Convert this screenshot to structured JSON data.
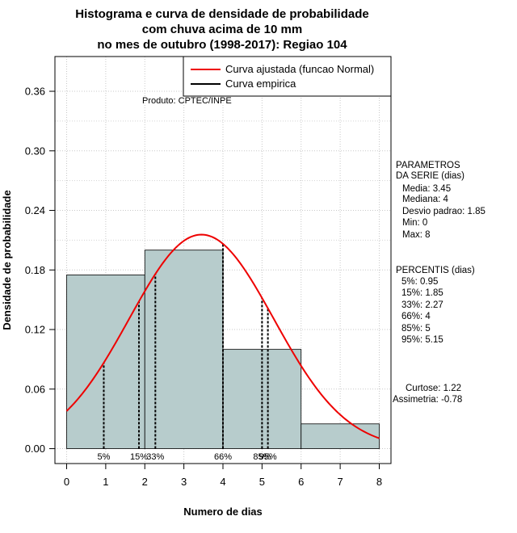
{
  "chart_data": {
    "type": "bar",
    "title_lines": [
      "Histograma e curva de densidade de probabilidade",
      "com chuva acima de 10 mm",
      "no mes de outubro (1998-2017): Regiao 104"
    ],
    "xlabel": "Numero de dias",
    "ylabel": "Densidade de probabilidade",
    "xlim": [
      -0.3,
      8.3
    ],
    "ylim": [
      -0.015,
      0.395
    ],
    "x_ticks": [
      "0",
      "1",
      "2",
      "3",
      "4",
      "5",
      "6",
      "7",
      "8"
    ],
    "y_ticks": [
      "0.00",
      "0.06",
      "0.12",
      "0.18",
      "0.24",
      "0.30",
      "0.36"
    ],
    "grid": true,
    "bins": [
      {
        "from": 0,
        "to": 2,
        "density": 0.175
      },
      {
        "from": 2,
        "to": 4,
        "density": 0.2
      },
      {
        "from": 4,
        "to": 6,
        "density": 0.1
      },
      {
        "from": 6,
        "to": 8,
        "density": 0.025
      }
    ],
    "fitted_curve": {
      "distribution": "normal",
      "mean": 3.45,
      "sd": 1.85,
      "color": "#ee0000"
    },
    "bar_color": "#b7cccc",
    "legend": {
      "position": "top-right",
      "items": [
        {
          "label": "Curva ajustada (funcao Normal)",
          "color": "#ee0000"
        },
        {
          "label": "Curva empirica",
          "color": "#000000"
        }
      ]
    },
    "credit": "Produto: CPTEC/INPE",
    "percentile_marks": [
      {
        "label": "5%",
        "x": 0.95
      },
      {
        "label": "15%",
        "x": 1.85
      },
      {
        "label": "33%",
        "x": 2.27
      },
      {
        "label": "66%",
        "x": 4
      },
      {
        "label": "85%",
        "x": 5
      },
      {
        "label": "95%",
        "x": 5.15
      }
    ]
  },
  "parametros": {
    "heading_1": "PARAMETROS",
    "heading_2": "DA SERIE (dias)",
    "lines": [
      "Media: 3.45",
      "Mediana: 4",
      "Desvio padrao: 1.85",
      "Min: 0",
      "Max: 8"
    ]
  },
  "percentis": {
    "heading": "PERCENTIS (dias)",
    "lines": [
      "5%: 0.95",
      "15%: 1.85",
      "33%: 2.27",
      "66%: 4",
      "85%: 5",
      "95%: 5.15"
    ]
  },
  "shape_stats": {
    "lines": [
      "Curtose: 1.22",
      "Assimetria: -0.78"
    ]
  }
}
